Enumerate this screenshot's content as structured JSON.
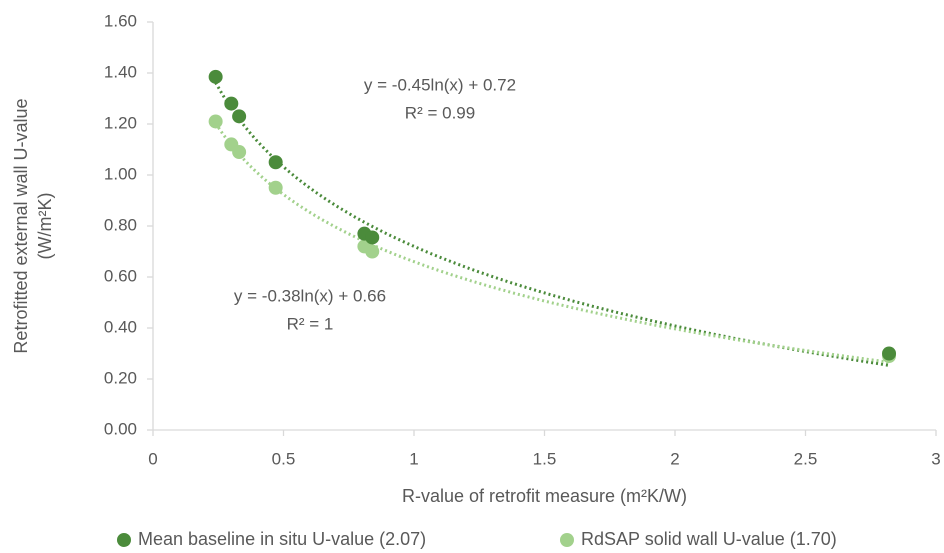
{
  "chart_data": {
    "type": "scatter",
    "xlabel": "R-value of retrofit measure (m²K/W)",
    "ylabel": [
      "Retrofitted external wall U-value",
      "(W/m²K)"
    ],
    "xlim": [
      0,
      3
    ],
    "xticks": [
      0,
      0.5,
      1,
      1.5,
      2,
      2.5,
      3
    ],
    "ylim": [
      0,
      1.6
    ],
    "yticks": [
      {
        "value": 0,
        "label": "0.00"
      },
      {
        "value": 0.2,
        "label": "0.20"
      },
      {
        "value": 0.4,
        "label": "0.40"
      },
      {
        "value": 0.6,
        "label": "0.60"
      },
      {
        "value": 0.8,
        "label": "0.80"
      },
      {
        "value": 1.0,
        "label": "1.00"
      },
      {
        "value": 1.2,
        "label": "1.20"
      },
      {
        "value": 1.4,
        "label": "1.40"
      },
      {
        "value": 1.6,
        "label": "1.60"
      }
    ],
    "legend": "bottom",
    "series": [
      {
        "name": "Mean baseline in situ U-value (2.07)",
        "color": "#4b8b3b",
        "x": [
          0.24,
          0.3,
          0.33,
          0.47,
          0.81,
          0.84,
          2.82
        ],
        "values": [
          1.385,
          1.28,
          1.23,
          1.05,
          0.77,
          0.755,
          0.3
        ],
        "trendline": {
          "type": "log",
          "a": -0.45,
          "b": 0.72,
          "equation": "y = -0.45ln(x) + 0.72",
          "r2": "R² = 0.99"
        }
      },
      {
        "name": "RdSAP solid wall U-value (1.70)",
        "color": "#a2d18c",
        "x": [
          0.24,
          0.3,
          0.33,
          0.47,
          0.81,
          0.84,
          2.82
        ],
        "values": [
          1.21,
          1.12,
          1.09,
          0.95,
          0.72,
          0.7,
          0.29
        ],
        "trendline": {
          "type": "log",
          "a": -0.38,
          "b": 0.66,
          "equation": "y = -0.38ln(x) + 0.66",
          "r2": "R² = 1"
        }
      }
    ]
  }
}
